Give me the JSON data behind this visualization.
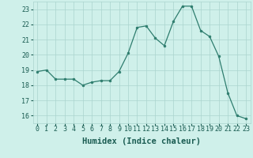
{
  "x": [
    0,
    1,
    2,
    3,
    4,
    5,
    6,
    7,
    8,
    9,
    10,
    11,
    12,
    13,
    14,
    15,
    16,
    17,
    18,
    19,
    20,
    21,
    22,
    23
  ],
  "y": [
    18.9,
    19.0,
    18.4,
    18.4,
    18.4,
    18.0,
    18.2,
    18.3,
    18.3,
    18.9,
    20.1,
    21.8,
    21.9,
    21.1,
    20.6,
    22.2,
    23.2,
    23.2,
    21.6,
    21.2,
    19.9,
    17.5,
    16.0,
    15.8
  ],
  "line_color": "#2e7d6e",
  "marker": "o",
  "markersize": 2.0,
  "linewidth": 0.9,
  "xlabel": "Humidex (Indice chaleur)",
  "ylabel": "",
  "xlim": [
    -0.5,
    23.5
  ],
  "ylim": [
    15.5,
    23.5
  ],
  "yticks": [
    16,
    17,
    18,
    19,
    20,
    21,
    22,
    23
  ],
  "xticks": [
    0,
    1,
    2,
    3,
    4,
    5,
    6,
    7,
    8,
    9,
    10,
    11,
    12,
    13,
    14,
    15,
    16,
    17,
    18,
    19,
    20,
    21,
    22,
    23
  ],
  "bg_color": "#cff0ea",
  "grid_color": "#aad4ce",
  "tick_color": "#1a5c52",
  "xlabel_fontsize": 7.5,
  "tick_fontsize": 6.0
}
